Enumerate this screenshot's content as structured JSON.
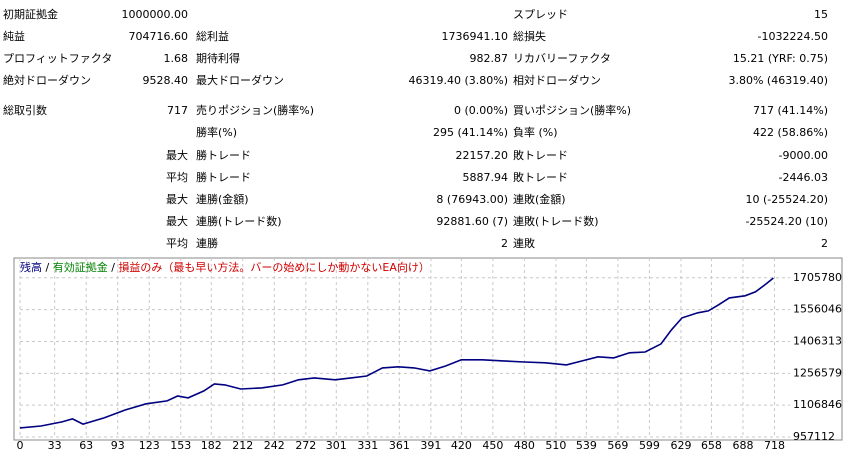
{
  "report": {
    "rows": [
      {
        "left": {
          "label": "初期証拠金",
          "value": "1000000.00"
        },
        "right": {
          "label": "スプレッド",
          "value": "15"
        }
      },
      {
        "left": {
          "label": "純益",
          "value": "704716.60"
        },
        "middle": {
          "label": "総利益",
          "value": "1736941.10"
        },
        "right": {
          "label": "総損失",
          "value": "-1032224.50"
        }
      },
      {
        "left": {
          "label": "プロフィットファクタ",
          "value": "1.68"
        },
        "middle": {
          "label": "期待利得",
          "value": "982.87"
        },
        "right": {
          "label": "リカバリーファクタ",
          "value": "15.21 (YRF: 0.75)"
        }
      },
      {
        "left": {
          "label": "絶対ドローダウン",
          "value": "9528.40"
        },
        "middle": {
          "label": "最大ドローダウン",
          "value": "46319.40 (3.80%)"
        },
        "right": {
          "label": "相対ドローダウン",
          "value": "3.80% (46319.40)"
        }
      },
      {
        "left": {
          "label": "総取引数",
          "value": "717"
        },
        "middle": {
          "label": "売りポジション(勝率%)",
          "value": "0 (0.00%)"
        },
        "right": {
          "label": "買いポジション(勝率%)",
          "value": "717 (41.14%)"
        }
      },
      {
        "middle": {
          "label": "勝率(%)",
          "value": "295 (41.14%)"
        },
        "right": {
          "label": "負率 (%)",
          "value": "422 (58.86%)"
        }
      },
      {
        "prefix": "最大",
        "middle": {
          "label": "勝トレード",
          "value": "22157.20"
        },
        "right": {
          "label": "敗トレード",
          "value": "-9000.00"
        }
      },
      {
        "prefix": "平均",
        "middle": {
          "label": "勝トレード",
          "value": "5887.94"
        },
        "right": {
          "label": "敗トレード",
          "value": "-2446.03"
        }
      },
      {
        "prefix": "最大",
        "middle": {
          "label": "連勝(金額)",
          "value": "8 (76943.00)"
        },
        "right": {
          "label": "連敗(金額)",
          "value": "10 (-25524.20)"
        }
      },
      {
        "prefix": "最大",
        "middle": {
          "label": "連勝(トレード数)",
          "value": "92881.60 (7)"
        },
        "right": {
          "label": "連敗(トレード数)",
          "value": "-25524.20 (10)"
        }
      },
      {
        "prefix": "平均",
        "middle": {
          "label": "連勝",
          "value": "2"
        },
        "right": {
          "label": "連敗",
          "value": "2"
        }
      }
    ]
  },
  "chart_data": {
    "type": "line",
    "legend": [
      {
        "text": "残高",
        "color": "#000080"
      },
      {
        "text": "有効証拠金",
        "color": "#008000"
      },
      {
        "text": "損益のみ（最も早い方法。バーの始めにしか動かないEA向け）",
        "color": "#d00000"
      }
    ],
    "legend_separator": "/",
    "x": [
      0,
      20,
      40,
      50,
      60,
      80,
      100,
      120,
      140,
      150,
      160,
      175,
      185,
      195,
      210,
      230,
      250,
      265,
      280,
      300,
      315,
      330,
      345,
      360,
      375,
      390,
      405,
      420,
      440,
      460,
      480,
      500,
      520,
      535,
      550,
      565,
      580,
      595,
      610,
      620,
      630,
      645,
      655,
      665,
      675,
      690,
      700,
      710,
      717
    ],
    "series": [
      {
        "name": "残高",
        "color": "#000080",
        "values": [
          1000000,
          1009000,
          1028000,
          1042000,
          1018000,
          1047000,
          1084000,
          1113000,
          1127000,
          1150000,
          1141000,
          1174000,
          1207000,
          1202000,
          1183000,
          1188000,
          1202000,
          1226000,
          1235000,
          1226000,
          1235000,
          1244000,
          1282000,
          1287000,
          1282000,
          1268000,
          1291000,
          1320000,
          1320000,
          1315000,
          1310000,
          1306000,
          1296000,
          1315000,
          1334000,
          1329000,
          1353000,
          1357000,
          1395000,
          1461000,
          1517000,
          1541000,
          1550000,
          1579000,
          1611000,
          1621000,
          1640000,
          1677000,
          1704716.6
        ]
      }
    ],
    "xlim": [
      0,
      728
    ],
    "xticks": [
      0,
      33,
      63,
      93,
      123,
      153,
      182,
      212,
      242,
      272,
      301,
      331,
      361,
      391,
      420,
      450,
      480,
      510,
      539,
      569,
      599,
      629,
      658,
      688,
      718
    ],
    "ylim": [
      957112,
      1780000
    ],
    "yticks": [
      957112,
      1106846,
      1256579,
      1406313,
      1556046,
      1705780
    ],
    "grid": true
  }
}
